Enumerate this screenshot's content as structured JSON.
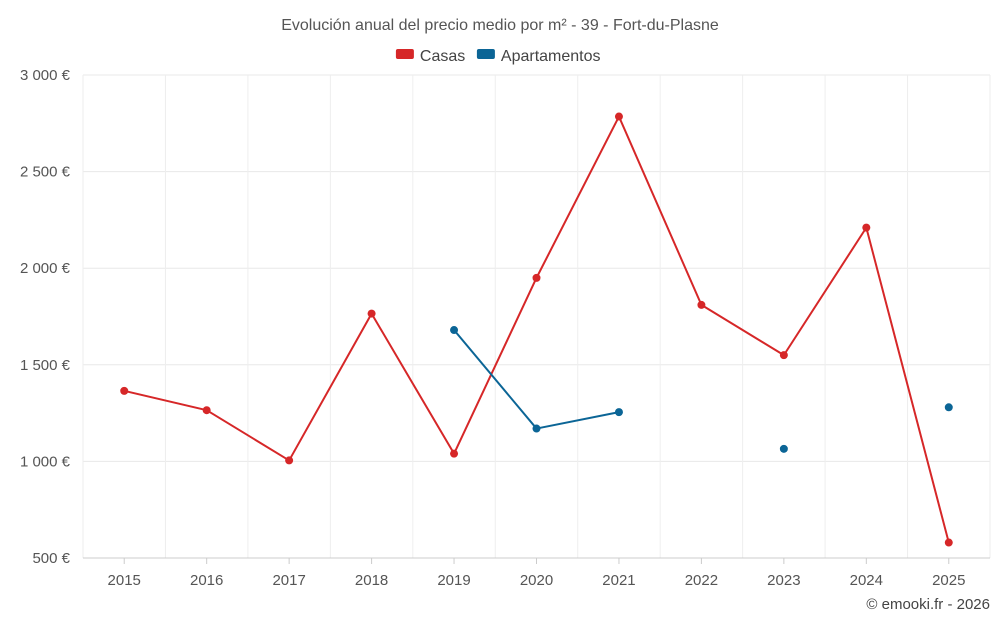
{
  "chart_data": {
    "type": "line",
    "title": "Evolución anual del precio medio por m² - 39 - Fort-du-Plasne",
    "categories": [
      "2015",
      "2016",
      "2017",
      "2018",
      "2019",
      "2020",
      "2021",
      "2022",
      "2023",
      "2024",
      "2025"
    ],
    "series": [
      {
        "name": "Casas",
        "color": "#d62728",
        "values": [
          1365,
          1265,
          1005,
          1765,
          1040,
          1950,
          2785,
          1810,
          1550,
          2210,
          580
        ]
      },
      {
        "name": "Apartamentos",
        "color": "#0b6596",
        "values": [
          null,
          null,
          null,
          null,
          1680,
          1170,
          1255,
          null,
          1065,
          null,
          1280
        ]
      }
    ],
    "ylim": [
      500,
      3000
    ],
    "yticks": [
      500,
      1000,
      1500,
      2000,
      2500,
      3000
    ],
    "ytick_labels": [
      "500 €",
      "1 000 €",
      "1 500 €",
      "2 000 €",
      "2 500 €",
      "3 000 €"
    ],
    "xlabel": "",
    "ylabel": "",
    "grid": true,
    "legend_position": "top-center"
  },
  "credit": "© emooki.fr - 2026"
}
